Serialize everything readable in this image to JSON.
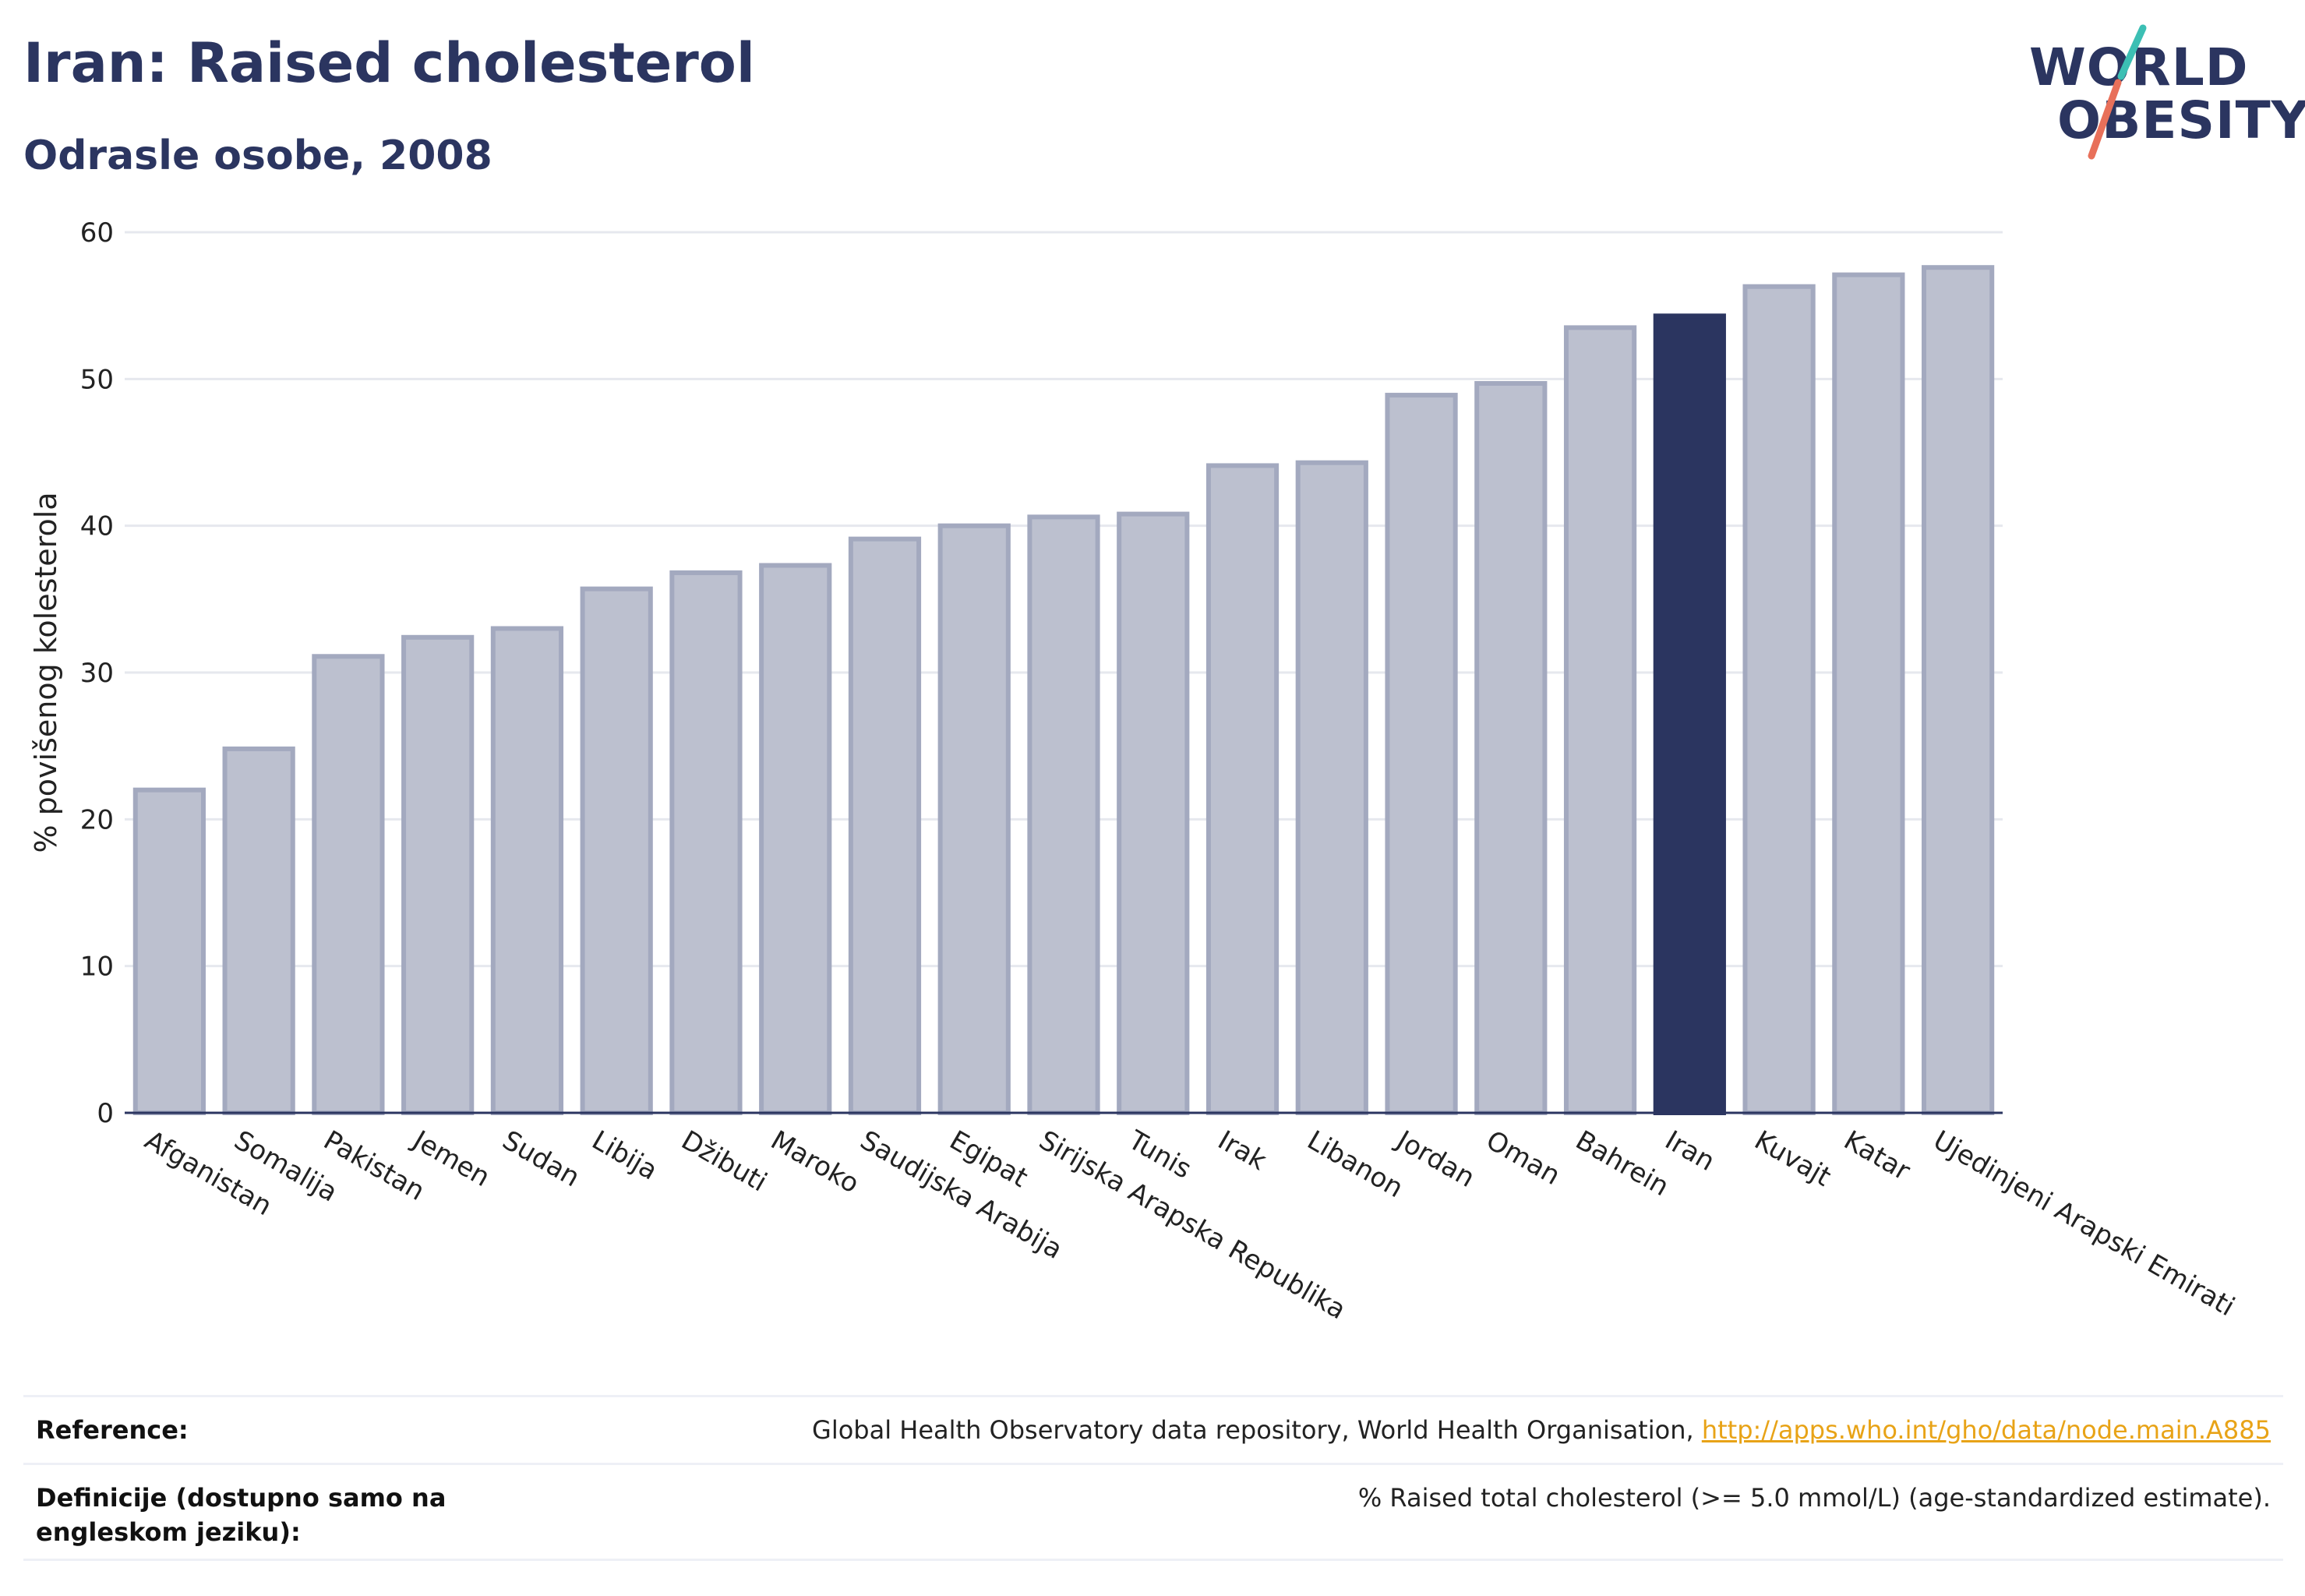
{
  "title": "Iran: Raised cholesterol",
  "subtitle": "Odrasle osobe, 2008",
  "logo": {
    "line1": "WORLD",
    "line2": "OBESITY"
  },
  "colors": {
    "bar": "#bcc0cf",
    "bar_edge": "#a3a9bf",
    "highlight": "#2b3560",
    "grid": "#e6e8ee",
    "axis": "#2b3560"
  },
  "chart_data": {
    "type": "bar",
    "ylabel": "% povišenog kolesterola",
    "ylim": [
      0,
      60
    ],
    "yticks": [
      0,
      10,
      20,
      30,
      40,
      50,
      60
    ],
    "grid": true,
    "highlight": "Iran",
    "categories": [
      "Afganistan",
      "Somalija",
      "Pakistan",
      "Jemen",
      "Sudan",
      "Libija",
      "Džibuti",
      "Maroko",
      "Saudijska Arabija",
      "Egipat",
      "Sirijska Arapska Republika",
      "Tunis",
      "Irak",
      "Libanon",
      "Jordan",
      "Oman",
      "Bahrein",
      "Iran",
      "Kuvajt",
      "Katar",
      "Ujedinjeni Arapski Emirati"
    ],
    "values": [
      22.0,
      24.8,
      31.1,
      32.4,
      33.0,
      35.7,
      36.8,
      37.3,
      39.1,
      40.0,
      40.6,
      40.8,
      44.1,
      44.3,
      48.9,
      49.7,
      53.5,
      54.3,
      56.3,
      57.1,
      57.6
    ]
  },
  "reference": {
    "label": "Reference:",
    "text": "Global Health Observatory data repository, World Health Organisation,",
    "link": "http://apps.who.int/gho/data/node.main.A885"
  },
  "definition": {
    "label": "Definicije (dostupno samo na engleskom jeziku):",
    "text": "% Raised total cholesterol (>= 5.0 mmol/L) (age-standardized estimate)."
  }
}
